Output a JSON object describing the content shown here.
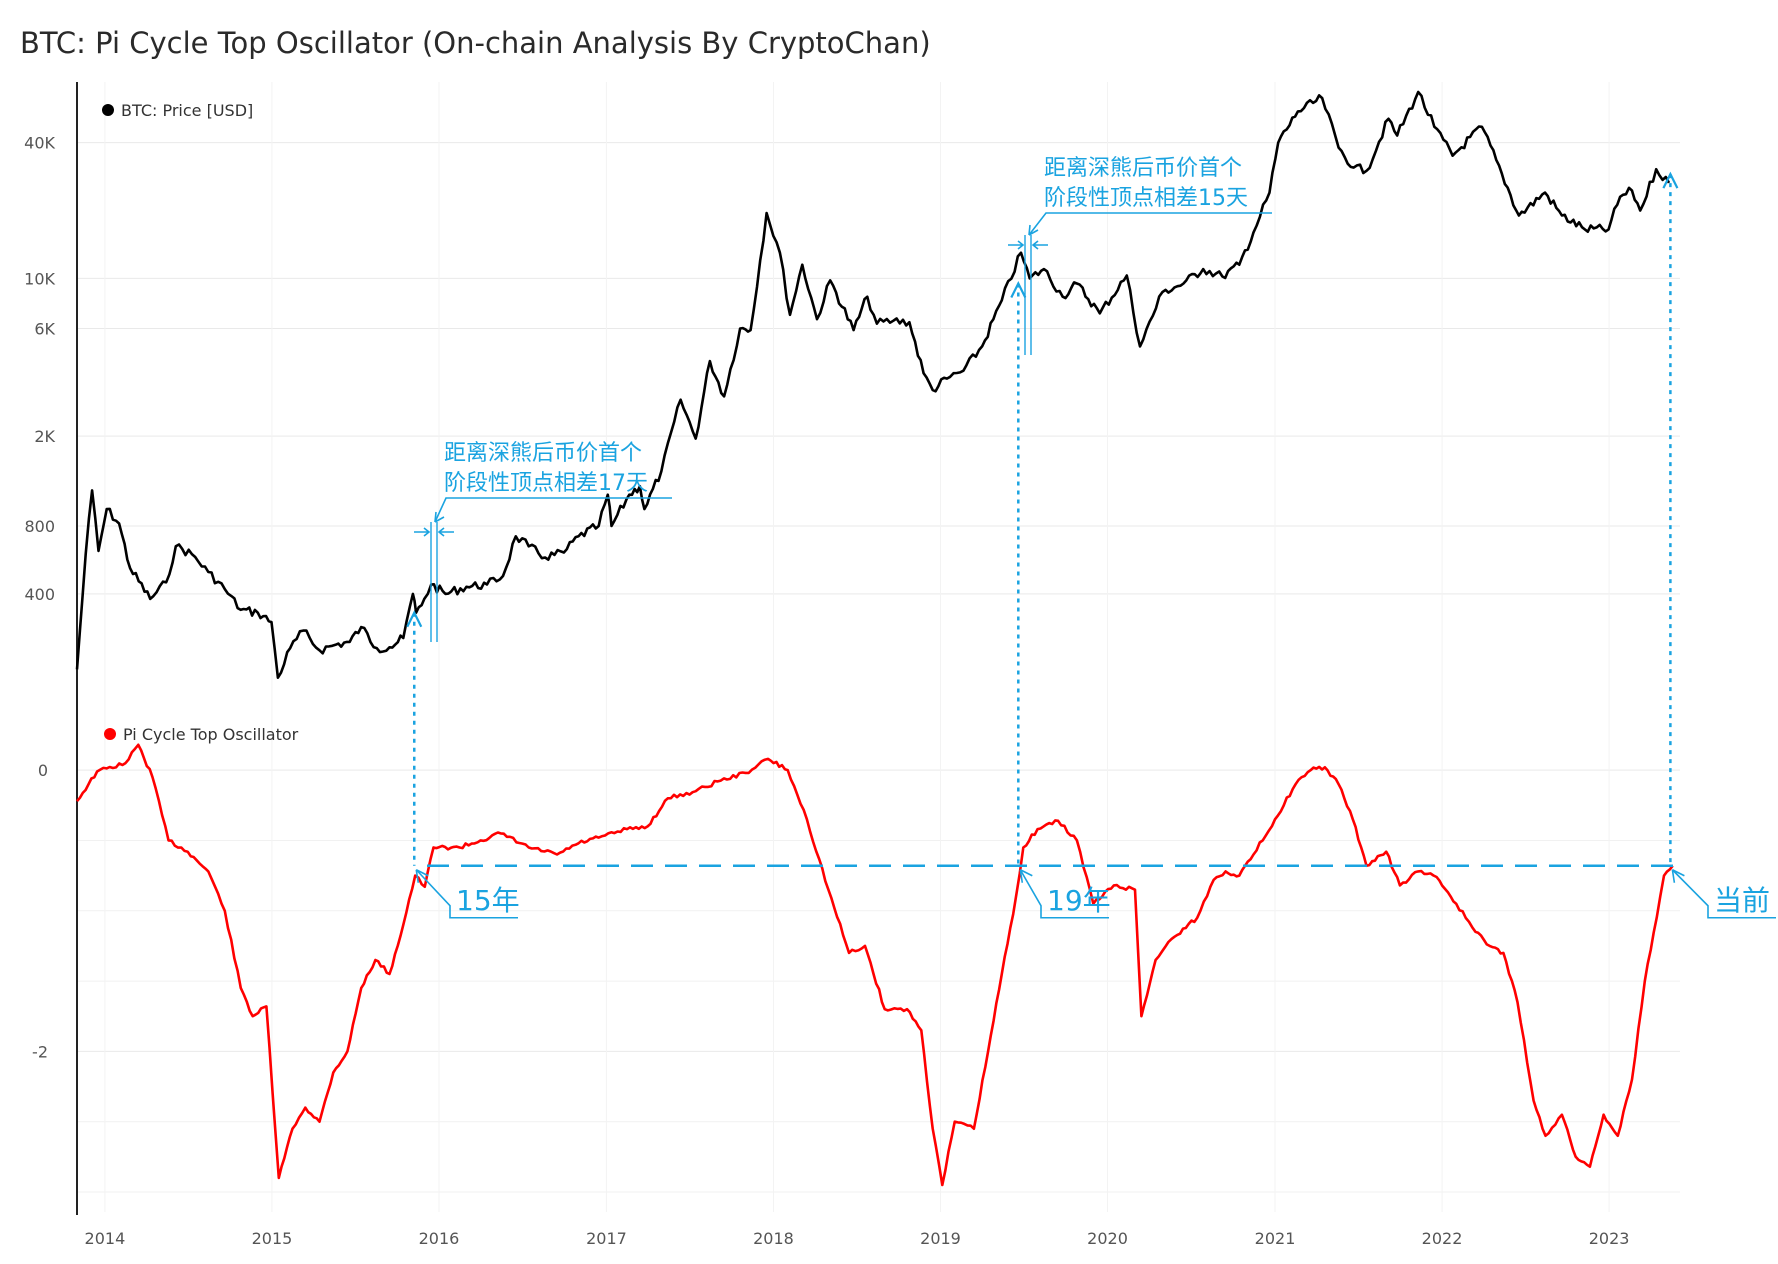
{
  "title": "BTC: Pi Cycle Top Oscillator (On-chain Analysis By CryptoChan)",
  "colors": {
    "price": "#000000",
    "oscillator": "#ff0000",
    "annotation": "#1aa3e0",
    "grid": "#e9e9e9",
    "axis": "#222222"
  },
  "chart_data": [
    {
      "type": "line",
      "panel": "top",
      "yscale": "log",
      "ylim": [
        150,
        65000
      ],
      "legend_position": "top-left",
      "grid": true,
      "yticks": [
        {
          "value": 40000,
          "label": "40K"
        },
        {
          "value": 10000,
          "label": "10K"
        },
        {
          "value": 6000,
          "label": "6K"
        },
        {
          "value": 2000,
          "label": "2K"
        },
        {
          "value": 800,
          "label": "800"
        },
        {
          "value": 400,
          "label": "400"
        }
      ],
      "series": [
        {
          "name": "BTC: Price [USD]",
          "color": "#000000",
          "points": [
            [
              "2013-11-01",
              185
            ],
            [
              "2013-11-20",
              600
            ],
            [
              "2013-12-04",
              1150
            ],
            [
              "2013-12-18",
              620
            ],
            [
              "2014-01-05",
              950
            ],
            [
              "2014-02-01",
              820
            ],
            [
              "2014-02-25",
              520
            ],
            [
              "2014-04-10",
              380
            ],
            [
              "2014-05-15",
              450
            ],
            [
              "2014-06-05",
              650
            ],
            [
              "2014-07-10",
              600
            ],
            [
              "2014-08-15",
              500
            ],
            [
              "2014-09-20",
              420
            ],
            [
              "2014-10-25",
              340
            ],
            [
              "2014-12-01",
              330
            ],
            [
              "2014-12-31",
              300
            ],
            [
              "2015-01-14",
              170
            ],
            [
              "2015-02-10",
              230
            ],
            [
              "2015-03-10",
              275
            ],
            [
              "2015-04-15",
              225
            ],
            [
              "2015-05-20",
              238
            ],
            [
              "2015-06-20",
              245
            ],
            [
              "2015-07-15",
              285
            ],
            [
              "2015-08-18",
              230
            ],
            [
              "2015-09-15",
              232
            ],
            [
              "2015-10-15",
              255
            ],
            [
              "2015-11-05",
              400
            ],
            [
              "2015-11-12",
              330
            ],
            [
              "2015-11-30",
              380
            ],
            [
              "2015-12-15",
              440
            ],
            [
              "2016-01-15",
              400
            ],
            [
              "2016-03-01",
              430
            ],
            [
              "2016-04-15",
              440
            ],
            [
              "2016-05-20",
              480
            ],
            [
              "2016-06-17",
              720
            ],
            [
              "2016-07-15",
              650
            ],
            [
              "2016-08-20",
              580
            ],
            [
              "2016-09-30",
              610
            ],
            [
              "2016-11-01",
              720
            ],
            [
              "2016-12-15",
              800
            ],
            [
              "2017-01-04",
              1100
            ],
            [
              "2017-01-12",
              800
            ],
            [
              "2017-02-20",
              1100
            ],
            [
              "2017-03-15",
              1200
            ],
            [
              "2017-03-25",
              950
            ],
            [
              "2017-05-01",
              1400
            ],
            [
              "2017-06-12",
              2900
            ],
            [
              "2017-07-15",
              1950
            ],
            [
              "2017-08-15",
              4300
            ],
            [
              "2017-09-15",
              3000
            ],
            [
              "2017-10-20",
              6000
            ],
            [
              "2017-11-12",
              5900
            ],
            [
              "2017-12-17",
              19500
            ],
            [
              "2018-01-15",
              13000
            ],
            [
              "2018-02-06",
              6900
            ],
            [
              "2018-03-05",
              11500
            ],
            [
              "2018-04-06",
              6600
            ],
            [
              "2018-05-05",
              9800
            ],
            [
              "2018-06-25",
              5900
            ],
            [
              "2018-07-25",
              8300
            ],
            [
              "2018-08-15",
              6300
            ],
            [
              "2018-09-20",
              6500
            ],
            [
              "2018-10-25",
              6400
            ],
            [
              "2018-11-25",
              3800
            ],
            [
              "2018-12-15",
              3200
            ],
            [
              "2019-01-15",
              3600
            ],
            [
              "2019-02-20",
              3900
            ],
            [
              "2019-04-02",
              5000
            ],
            [
              "2019-05-15",
              8000
            ],
            [
              "2019-06-26",
              13000
            ],
            [
              "2019-07-15",
              10000
            ],
            [
              "2019-08-15",
              11000
            ],
            [
              "2019-09-25",
              8300
            ],
            [
              "2019-10-26",
              9500
            ],
            [
              "2019-12-15",
              7000
            ],
            [
              "2020-02-12",
              10300
            ],
            [
              "2020-03-12",
              5000
            ],
            [
              "2020-04-30",
              8700
            ],
            [
              "2020-06-15",
              9500
            ],
            [
              "2020-07-28",
              11000
            ],
            [
              "2020-09-08",
              10200
            ],
            [
              "2020-10-15",
              11500
            ],
            [
              "2020-11-15",
              16000
            ],
            [
              "2020-12-20",
              24000
            ],
            [
              "2021-01-08",
              40000
            ],
            [
              "2021-02-20",
              55000
            ],
            [
              "2021-04-14",
              63000
            ],
            [
              "2021-05-20",
              38000
            ],
            [
              "2021-06-22",
              31000
            ],
            [
              "2021-07-20",
              30000
            ],
            [
              "2021-09-06",
              51000
            ],
            [
              "2021-09-25",
              43000
            ],
            [
              "2021-11-10",
              67000
            ],
            [
              "2021-12-15",
              47000
            ],
            [
              "2022-01-24",
              35000
            ],
            [
              "2022-03-29",
              47000
            ],
            [
              "2022-05-12",
              29000
            ],
            [
              "2022-06-18",
              19000
            ],
            [
              "2022-08-14",
              24000
            ],
            [
              "2022-09-20",
              19000
            ],
            [
              "2022-11-09",
              16500
            ],
            [
              "2022-12-31",
              16500
            ],
            [
              "2023-01-25",
              23000
            ],
            [
              "2023-02-20",
              24500
            ],
            [
              "2023-03-10",
              20000
            ],
            [
              "2023-04-14",
              30500
            ],
            [
              "2023-05-12",
              26500
            ]
          ]
        }
      ]
    },
    {
      "type": "line",
      "panel": "bottom",
      "ylim": [
        -3.0,
        0.2
      ],
      "legend_position": "top-left",
      "grid": true,
      "yticks": [
        {
          "value": 0,
          "label": "0"
        },
        {
          "value": -2,
          "label": "-2"
        }
      ],
      "xticks": [
        "2014",
        "2015",
        "2016",
        "2017",
        "2018",
        "2019",
        "2020",
        "2021",
        "2022",
        "2023"
      ],
      "series": [
        {
          "name": "Pi Cycle Top Oscillator",
          "color": "#ff0000",
          "points": [
            [
              "2013-11-01",
              -0.22
            ],
            [
              "2013-12-15",
              -0.01
            ],
            [
              "2014-02-15",
              0.05
            ],
            [
              "2014-03-15",
              0.18
            ],
            [
              "2014-04-15",
              -0.05
            ],
            [
              "2014-05-20",
              -0.5
            ],
            [
              "2014-07-01",
              -0.58
            ],
            [
              "2014-08-15",
              -0.72
            ],
            [
              "2014-09-20",
              -1.0
            ],
            [
              "2014-10-25",
              -1.55
            ],
            [
              "2014-11-20",
              -1.75
            ],
            [
              "2014-12-20",
              -1.68
            ],
            [
              "2015-01-16",
              -2.9
            ],
            [
              "2015-02-15",
              -2.55
            ],
            [
              "2015-03-15",
              -2.4
            ],
            [
              "2015-04-15",
              -2.5
            ],
            [
              "2015-05-15",
              -2.15
            ],
            [
              "2015-06-15",
              -2.0
            ],
            [
              "2015-07-15",
              -1.55
            ],
            [
              "2015-08-15",
              -1.35
            ],
            [
              "2015-09-15",
              -1.45
            ],
            [
              "2015-10-15",
              -1.1
            ],
            [
              "2015-11-10",
              -0.75
            ],
            [
              "2015-12-01",
              -0.83
            ],
            [
              "2015-12-20",
              -0.55
            ],
            [
              "2016-02-15",
              -0.55
            ],
            [
              "2016-04-01",
              -0.5
            ],
            [
              "2016-05-15",
              -0.45
            ],
            [
              "2016-07-15",
              -0.55
            ],
            [
              "2016-09-15",
              -0.6
            ],
            [
              "2016-11-01",
              -0.52
            ],
            [
              "2016-12-15",
              -0.48
            ],
            [
              "2017-02-15",
              -0.42
            ],
            [
              "2017-04-01",
              -0.4
            ],
            [
              "2017-05-15",
              -0.2
            ],
            [
              "2017-07-15",
              -0.15
            ],
            [
              "2017-09-01",
              -0.08
            ],
            [
              "2017-11-01",
              -0.02
            ],
            [
              "2017-12-20",
              0.08
            ],
            [
              "2018-02-01",
              0.0
            ],
            [
              "2018-03-15",
              -0.35
            ],
            [
              "2018-05-01",
              -0.85
            ],
            [
              "2018-06-15",
              -1.3
            ],
            [
              "2018-07-20",
              -1.25
            ],
            [
              "2018-09-01",
              -1.7
            ],
            [
              "2018-10-20",
              -1.7
            ],
            [
              "2018-11-20",
              -1.85
            ],
            [
              "2018-12-15",
              -2.55
            ],
            [
              "2019-01-05",
              -2.95
            ],
            [
              "2019-02-01",
              -2.5
            ],
            [
              "2019-03-15",
              -2.55
            ],
            [
              "2019-04-15",
              -2.0
            ],
            [
              "2019-05-15",
              -1.45
            ],
            [
              "2019-06-15",
              -0.9
            ],
            [
              "2019-07-01",
              -0.55
            ],
            [
              "2019-08-01",
              -0.42
            ],
            [
              "2019-09-15",
              -0.36
            ],
            [
              "2019-10-26",
              -0.5
            ],
            [
              "2019-12-01",
              -0.95
            ],
            [
              "2020-01-15",
              -0.82
            ],
            [
              "2020-03-01",
              -0.85
            ],
            [
              "2020-03-15",
              -1.75
            ],
            [
              "2020-04-15",
              -1.35
            ],
            [
              "2020-05-20",
              -1.2
            ],
            [
              "2020-07-15",
              -1.05
            ],
            [
              "2020-08-20",
              -0.78
            ],
            [
              "2020-09-15",
              -0.72
            ],
            [
              "2020-10-15",
              -0.75
            ],
            [
              "2020-11-15",
              -0.6
            ],
            [
              "2021-01-01",
              -0.35
            ],
            [
              "2021-02-15",
              -0.1
            ],
            [
              "2021-03-20",
              0.0
            ],
            [
              "2021-04-20",
              0.02
            ],
            [
              "2021-05-20",
              -0.1
            ],
            [
              "2021-06-20",
              -0.35
            ],
            [
              "2021-07-20",
              -0.68
            ],
            [
              "2021-09-01",
              -0.58
            ],
            [
              "2021-10-01",
              -0.82
            ],
            [
              "2021-11-10",
              -0.72
            ],
            [
              "2021-12-20",
              -0.76
            ],
            [
              "2022-02-01",
              -0.95
            ],
            [
              "2022-03-15",
              -1.15
            ],
            [
              "2022-04-15",
              -1.25
            ],
            [
              "2022-05-15",
              -1.3
            ],
            [
              "2022-06-15",
              -1.65
            ],
            [
              "2022-07-20",
              -2.35
            ],
            [
              "2022-08-15",
              -2.6
            ],
            [
              "2022-09-20",
              -2.45
            ],
            [
              "2022-10-20",
              -2.75
            ],
            [
              "2022-11-20",
              -2.82
            ],
            [
              "2022-12-20",
              -2.45
            ],
            [
              "2023-01-20",
              -2.6
            ],
            [
              "2023-02-20",
              -2.2
            ],
            [
              "2023-03-20",
              -1.5
            ],
            [
              "2023-04-15",
              -1.05
            ],
            [
              "2023-05-01",
              -0.75
            ],
            [
              "2023-05-20",
              -0.68
            ]
          ]
        }
      ]
    }
  ],
  "annotations": {
    "note_2016_line1": "距离深熊后币价首个",
    "note_2016_line2": "阶段性顶点相差17天",
    "note_2019_line1": "距离深熊后币价首个",
    "note_2019_line2": "阶段性顶点相差15天",
    "label_15": "15年",
    "label_19": "19年",
    "label_current": "当前",
    "reference_level": -0.68,
    "markers": [
      "2015-11-08",
      "2019-06-20",
      "2023-05-15"
    ]
  }
}
